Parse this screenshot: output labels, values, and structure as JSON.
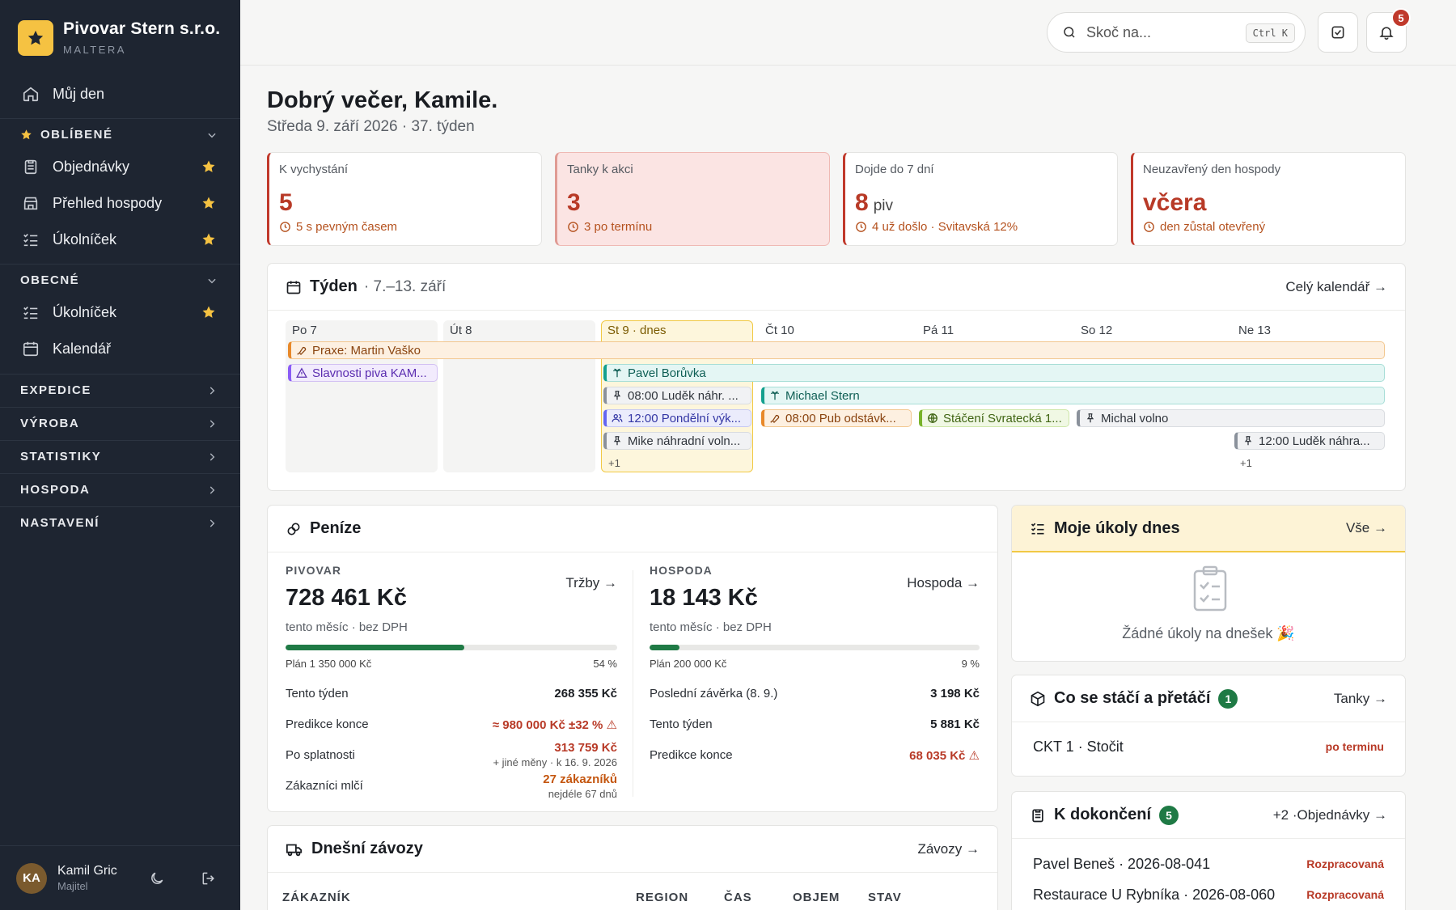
{
  "sidebar": {
    "brand": {
      "name": "Pivovar Stern s.r.o.",
      "sub": "MALTERA"
    },
    "my_day": "Můj den",
    "favorites": {
      "title": "OBLÍBENÉ",
      "items": [
        {
          "label": "Objednávky",
          "icon": "clipboard-icon"
        },
        {
          "label": "Přehled hospody",
          "icon": "store-icon"
        },
        {
          "label": "Úkolníček",
          "icon": "checklist-icon"
        }
      ]
    },
    "general": {
      "title": "OBECNÉ",
      "items": [
        {
          "label": "Úkolníček",
          "icon": "checklist-icon"
        },
        {
          "label": "Kalendář",
          "icon": "calendar-icon"
        }
      ]
    },
    "sections": [
      "EXPEDICE",
      "VÝROBA",
      "STATISTIKY",
      "HOSPODA",
      "NASTAVENÍ"
    ],
    "user": {
      "initials": "KA",
      "name": "Kamil Gric",
      "role": "Majitel"
    }
  },
  "topbar": {
    "search_placeholder": "Skoč na...",
    "shortcut": "Ctrl K",
    "notifications": "5"
  },
  "greeting": {
    "title": "Dobrý večer, Kamile.",
    "subtitle": "Středa 9. září 2026 · 37. týden"
  },
  "kpis": [
    {
      "label": "K vychystání",
      "value": "5",
      "unit": "",
      "sub": "5 s pevným časem"
    },
    {
      "label": "Tanky k akci",
      "value": "3",
      "unit": "",
      "sub": "3 po termínu"
    },
    {
      "label": "Dojde do 7 dní",
      "value": "8",
      "unit": "piv",
      "sub": "4 už došlo · Svitavská 12%"
    },
    {
      "label": "Neuzavřený den hospody",
      "value": "včera",
      "unit": "",
      "sub": "den zůstal otevřený"
    }
  ],
  "week": {
    "title": "Týden",
    "range": "· 7.–13. září",
    "link": "Celý kalendář →",
    "days": [
      "Po 7",
      "Út 8",
      "St 9 · dnes",
      "Čt 10",
      "Pá 11",
      "So 12",
      "Ne 13"
    ],
    "events": {
      "praxe": "Praxe: Martin Vaško",
      "slavnosti": "Slavnosti piva KAM...",
      "pavel": "Pavel Borůvka",
      "ludek1": "08:00 Luděk náhr. ...",
      "michael": "Michael Stern",
      "pondelni": "12:00 Pondělní výk...",
      "pub": "08:00 Pub odstávk...",
      "staceni": "Stáčení Svratecká 1...",
      "michal": "Michal volno",
      "mike": "Mike náhradní voln...",
      "ludek2": "12:00 Luděk náhra..."
    },
    "more_today": "+1",
    "more_sunday": "+1"
  },
  "money": {
    "title": "Peníze",
    "brewery": {
      "label": "PIVOVAR",
      "link": "Tržby →",
      "amount": "728 461 Kč",
      "note": "tento měsíc · bez DPH",
      "progress": 0.54,
      "plan": "Plán 1 350 000 Kč",
      "pct": "54 %",
      "rows": [
        {
          "label": "Tento týden",
          "value": "268 355 Kč"
        },
        {
          "label": "Predikce konce",
          "value": "≈ 980 000 Kč ±32 % ⚠"
        },
        {
          "label": "Po splatnosti",
          "value": "313 759 Kč",
          "note": "+ jiné měny · k 16. 9. 2026"
        },
        {
          "label": "Zákazníci mlčí",
          "value": "27 zákazníků",
          "note": "nejdéle 67 dnů"
        }
      ]
    },
    "pub": {
      "label": "HOSPODA",
      "link": "Hospoda →",
      "amount": "18 143 Kč",
      "note": "tento měsíc · bez DPH",
      "progress": 0.09,
      "plan": "Plán 200 000 Kč",
      "pct": "9 %",
      "rows": [
        {
          "label": "Poslední závěrka (8. 9.)",
          "value": "3 198 Kč"
        },
        {
          "label": "Tento týden",
          "value": "5 881 Kč"
        },
        {
          "label": "Predikce konce",
          "value": "68 035 Kč ⚠"
        }
      ]
    }
  },
  "tasks": {
    "title": "Moje úkoly dnes",
    "link": "Vše →",
    "empty": "Žádné úkoly na dnešek 🎉"
  },
  "tanks": {
    "title": "Co se stáčí a přetáčí",
    "count": "1",
    "link": "Tanky →",
    "rows": [
      {
        "name": "CKT 1 · Stočit",
        "state": "po terminu"
      }
    ]
  },
  "todo": {
    "title": "K dokončení",
    "count": "5",
    "link": "+2 ·Objednávky →",
    "rows": [
      {
        "name": "Pavel Beneš · 2026-08-041",
        "state": "Rozpracovaná"
      },
      {
        "name": "Restaurace U Rybníka · 2026-08-060",
        "state": "Rozpracovaná"
      }
    ]
  },
  "deliveries": {
    "title": "Dnešní závozy",
    "link": "Závozy →",
    "columns": [
      "ZÁKAZNÍK",
      "REGION",
      "ČAS",
      "OBJEM",
      "STAV"
    ]
  },
  "colors": {
    "sidebar": "#1e2531",
    "accent": "#f5c242",
    "danger": "#b83a27",
    "success": "#1f7a45"
  }
}
